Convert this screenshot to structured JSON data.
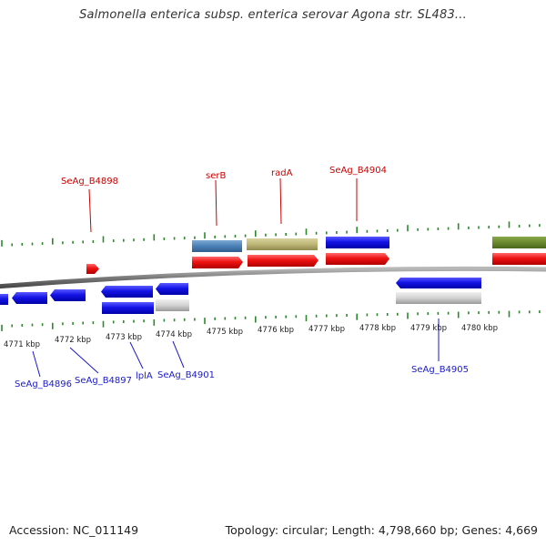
{
  "title": "Salmonella enterica subsp. enterica serovar Agona str. SL483...",
  "footer": {
    "accession": "Accession: NC_011149",
    "summary": "Topology: circular; Length: 4,798,660 bp; Genes: 4,669"
  },
  "colors": {
    "forward_label": "#cc0000",
    "reverse_label": "#1a1acc",
    "backbone": "#7a7a7a",
    "tick": "#2a8a2a"
  },
  "ruler_labels": [
    "4771 kbp",
    "4772 kbp",
    "4773 kbp",
    "4774 kbp",
    "4775 kbp",
    "4776 kbp",
    "4777 kbp",
    "4778 kbp",
    "4779 kbp",
    "4780 kbp"
  ],
  "gene_labels": {
    "forward": [
      "SeAg_B4898",
      "serB",
      "radA",
      "SeAg_B4904"
    ],
    "reverse": [
      "SeAg_B4896",
      "SeAg_B4897",
      "lplA",
      "SeAg_B4901",
      "SeAg_B4905"
    ]
  }
}
